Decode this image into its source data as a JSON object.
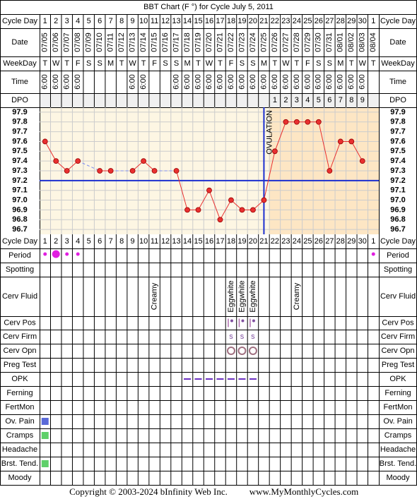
{
  "chart_data": {
    "type": "line",
    "title": "BBT Chart (F °) for Cycle July 5, 2011",
    "rows_top": [
      "Cycle Day",
      "Date",
      "WeekDay",
      "Time",
      "DPO"
    ],
    "rows_bottom": [
      "Cycle Day",
      "Period",
      "Spotting",
      "Cerv Fluid",
      "Cerv Pos",
      "Cerv Firm",
      "Cerv Opn",
      "Preg Test",
      "OPK",
      "Ferning",
      "FertMon",
      "Ov. Pain",
      "Cramps",
      "Headache",
      "Brst. Tend.",
      "Moody"
    ],
    "categories": [
      "1",
      "2",
      "3",
      "4",
      "5",
      "6",
      "7",
      "8",
      "9",
      "10",
      "11",
      "12",
      "13",
      "14",
      "15",
      "16",
      "17",
      "18",
      "19",
      "20",
      "21",
      "22",
      "23",
      "24",
      "25",
      "26",
      "27",
      "28",
      "29",
      "30",
      "1"
    ],
    "dates": [
      "07/05",
      "07/06",
      "07/07",
      "07/08",
      "07/09",
      "07/10",
      "07/11",
      "07/12",
      "07/13",
      "07/14",
      "07/15",
      "07/16",
      "07/17",
      "07/18",
      "07/19",
      "07/20",
      "07/21",
      "07/22",
      "07/23",
      "07/24",
      "07/25",
      "07/26",
      "07/27",
      "07/28",
      "07/29",
      "07/30",
      "07/31",
      "08/01",
      "08/02",
      "08/03",
      "08/04"
    ],
    "weekdays": [
      "T",
      "W",
      "T",
      "F",
      "S",
      "S",
      "M",
      "T",
      "W",
      "T",
      "F",
      "S",
      "S",
      "M",
      "T",
      "W",
      "T",
      "F",
      "S",
      "S",
      "M",
      "T",
      "W",
      "T",
      "F",
      "S",
      "S",
      "M",
      "T",
      "W",
      "T"
    ],
    "times": [
      "6:00",
      "6:00",
      "6:00",
      "6:00",
      null,
      null,
      null,
      null,
      "6:00",
      "6:00",
      null,
      null,
      "6:00",
      "6:00",
      "6:00",
      "6:00",
      "6:00",
      "6:00",
      "6:00",
      "6:00",
      "6:00",
      "6:00",
      "6:00",
      "6:00",
      "6:00",
      "6:00",
      "6:00",
      "6:00",
      "6:00",
      "6:00",
      null
    ],
    "dpo": [
      null,
      null,
      null,
      null,
      null,
      null,
      null,
      null,
      null,
      null,
      null,
      null,
      null,
      null,
      null,
      null,
      null,
      null,
      null,
      null,
      null,
      1,
      2,
      3,
      4,
      5,
      6,
      7,
      8,
      9,
      null
    ],
    "values": [
      97.6,
      97.4,
      97.3,
      97.4,
      null,
      97.3,
      97.3,
      null,
      97.3,
      97.4,
      97.3,
      null,
      97.3,
      96.9,
      96.9,
      97.1,
      96.8,
      97.0,
      96.9,
      96.9,
      97.0,
      97.5,
      97.8,
      97.8,
      97.8,
      97.8,
      97.3,
      97.6,
      97.6,
      97.4,
      null
    ],
    "color": "#e83030",
    "ylim": [
      96.65,
      97.95
    ],
    "yticks": [
      {
        "value": 96.7,
        "label": "96.7"
      },
      {
        "value": 96.8,
        "label": "96.8"
      },
      {
        "value": 96.9,
        "label": "96.9"
      },
      {
        "value": 97.0,
        "label": "97.0"
      },
      {
        "value": 97.1,
        "label": "97.1"
      },
      {
        "value": 97.2,
        "label": "97.2"
      },
      {
        "value": 97.3,
        "label": "97.3"
      },
      {
        "value": 97.4,
        "label": "97.4"
      },
      {
        "value": 97.5,
        "label": "97.5"
      },
      {
        "value": 97.6,
        "label": "97.6"
      },
      {
        "value": 97.7,
        "label": "97.7"
      },
      {
        "value": 97.8,
        "label": "97.8"
      },
      {
        "value": 97.9,
        "label": "97.9"
      }
    ],
    "coverline": 97.2,
    "ovulation_day": 21,
    "ovulation_label": "OVULATION",
    "period_days": [
      1,
      2,
      3,
      4,
      31
    ],
    "heavy_period_days": [
      2
    ],
    "cervical_fluid": [
      {
        "day": 11,
        "text": "Creamy"
      },
      {
        "day": 18,
        "text": "Eggwhite"
      },
      {
        "day": 19,
        "text": "Eggwhite"
      },
      {
        "day": 20,
        "text": "Eggwhite"
      },
      {
        "day": 24,
        "text": "Creamy"
      }
    ],
    "cervical_position_days": [
      18,
      19,
      20
    ],
    "cervical_firmness": [
      {
        "day": 18,
        "text": "s"
      },
      {
        "day": 19,
        "text": "s"
      },
      {
        "day": 20,
        "text": "s"
      }
    ],
    "cervical_opening_days": [
      18,
      19,
      20
    ],
    "opk_days": [
      14,
      15,
      16,
      17,
      18,
      19,
      20
    ],
    "ov_pain_days": [
      1
    ],
    "cramps_days": [
      1
    ],
    "breast_tenderness_days": [
      1
    ],
    "copyright": "Copyright © 2003-2024 bInfinity Web Inc.",
    "website": "www.MyMonthlyCycles.com"
  }
}
